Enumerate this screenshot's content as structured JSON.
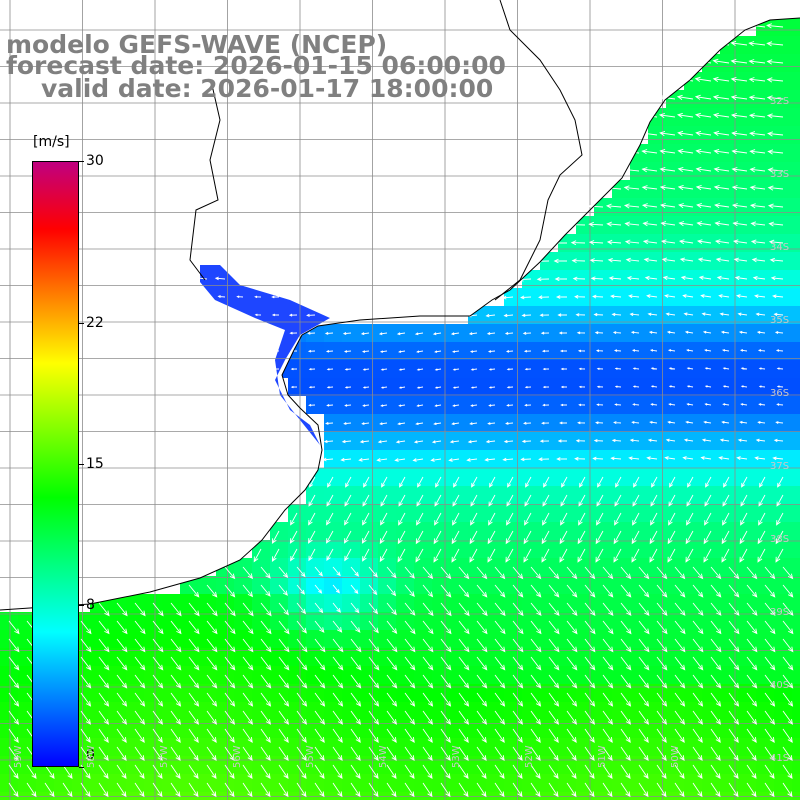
{
  "title": {
    "line1": "modelo GEFS-WAVE (NCEP)",
    "line2": "forecast date: 2026-01-15 06:00:00",
    "line3": "valid date: 2026-01-17 18:00:00"
  },
  "colorbar": {
    "units": "[m/s]",
    "ticks": [
      "30",
      "22",
      "15",
      "8",
      "0"
    ],
    "tick_values": [
      30,
      22,
      15,
      8,
      0
    ],
    "min": 0,
    "max": 30,
    "colors": [
      "#0000ff",
      "#0080ff",
      "#00ffff",
      "#00ff80",
      "#00ff00",
      "#80ff00",
      "#ffff00",
      "#ff8000",
      "#ff0000",
      "#c00080"
    ]
  },
  "map": {
    "lat_labels": [
      "32S",
      "33S",
      "34S",
      "35S",
      "36S",
      "37S",
      "38S",
      "39S",
      "40S",
      "41S"
    ],
    "lon_labels": [
      "59W",
      "58W",
      "57W",
      "56W",
      "55W",
      "54W",
      "53W",
      "52W",
      "51W",
      "50W"
    ],
    "land_color": "#ffffff",
    "grid_color": "#8c8c8c"
  }
}
